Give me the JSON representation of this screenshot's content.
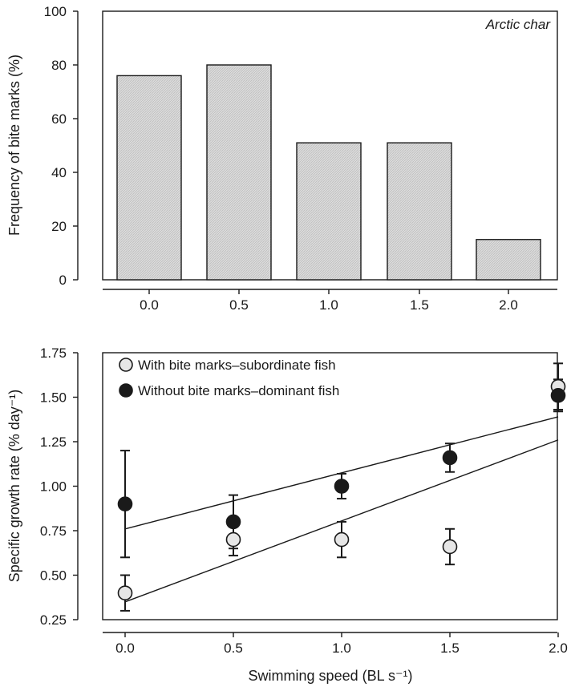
{
  "chart_data": [
    {
      "type": "bar",
      "annotation": "Arctic char",
      "ylabel": "Frequency of bite marks (%)",
      "categories": [
        "0.0",
        "0.5",
        "1.0",
        "1.5",
        "2.0"
      ],
      "values": [
        76,
        80,
        51,
        51,
        15
      ],
      "ylim": [
        0,
        100
      ],
      "yticks": [
        "0",
        "20",
        "40",
        "60",
        "80",
        "100"
      ],
      "bar_fill": "#d9d9d9"
    },
    {
      "type": "scatter",
      "xlabel": "Swimming speed (BL s⁻¹)",
      "ylabel": "Specific growth rate (% day⁻¹)",
      "xlim": [
        0,
        2
      ],
      "ylim": [
        0.25,
        1.75
      ],
      "xticks": [
        "0.0",
        "0.5",
        "1.0",
        "1.5",
        "2.0"
      ],
      "yticks": [
        "0.25",
        "0.50",
        "0.75",
        "1.00",
        "1.25",
        "1.50",
        "1.75"
      ],
      "legend_position": "top-left",
      "series": [
        {
          "name": "With bite marks–subordinate fish",
          "color": "#e6e6e6",
          "points": [
            {
              "x": 0,
              "y": 0.4,
              "err": 0.1
            },
            {
              "x": 0.5,
              "y": 0.7,
              "err": 0.09
            },
            {
              "x": 1.0,
              "y": 0.7,
              "err": 0.1
            },
            {
              "x": 1.5,
              "y": 0.66,
              "err": 0.1
            },
            {
              "x": 2.0,
              "y": 1.56,
              "err": 0.13
            }
          ],
          "fit": {
            "x": [
              0,
              2
            ],
            "y": [
              0.35,
              1.26
            ]
          }
        },
        {
          "name": "Without bite marks–dominant fish",
          "color": "#1a1a1a",
          "points": [
            {
              "x": 0,
              "y": 0.9,
              "err": 0.3
            },
            {
              "x": 0.5,
              "y": 0.8,
              "err": 0.15
            },
            {
              "x": 1.0,
              "y": 1.0,
              "err": 0.07
            },
            {
              "x": 1.5,
              "y": 1.16,
              "err": 0.08
            },
            {
              "x": 2.0,
              "y": 1.51,
              "err": 0.09
            }
          ],
          "fit": {
            "x": [
              0,
              2
            ],
            "y": [
              0.76,
              1.39
            ]
          }
        }
      ]
    }
  ]
}
